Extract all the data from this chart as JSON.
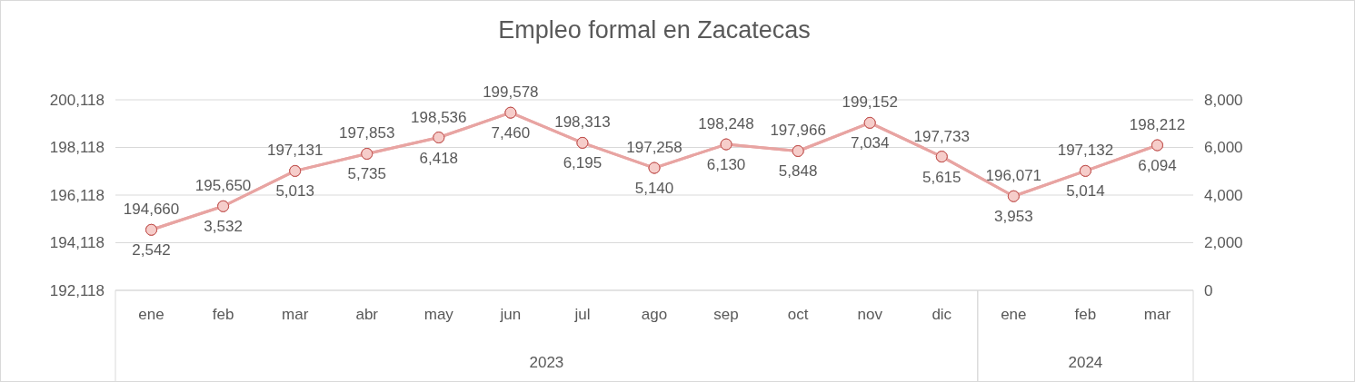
{
  "chart_data": {
    "type": "line",
    "title": "Empleo formal en Zacatecas",
    "categories": [
      "ene",
      "feb",
      "mar",
      "abr",
      "may",
      "jun",
      "jul",
      "ago",
      "sep",
      "oct",
      "nov",
      "dic",
      "ene",
      "feb",
      "mar"
    ],
    "series": [
      {
        "color": "#e8a4a2",
        "values": [
          194660,
          195650,
          197131,
          197853,
          198536,
          199578,
          198313,
          197258,
          198248,
          197966,
          199152,
          197733,
          196071,
          197132,
          198212
        ],
        "value_labels": [
          "194,660",
          "195,650",
          "197,131",
          "197,853",
          "198,536",
          "199,578",
          "198,313",
          "197,258",
          "198,248",
          "197,966",
          "199,152",
          "197,733",
          "196,071",
          "197,132",
          "198,212"
        ]
      },
      {
        "color": "#e8a4a2",
        "axis": "y2",
        "values": [
          2542,
          3532,
          5013,
          5735,
          6418,
          7460,
          6195,
          5140,
          6130,
          5848,
          7034,
          5615,
          3953,
          5014,
          6094
        ],
        "value_labels": [
          "2,542",
          "3,532",
          "5,013",
          "5,735",
          "6,418",
          "7,460",
          "6,195",
          "5,140",
          "6,130",
          "5,848",
          "7,034",
          "5,615",
          "3,953",
          "5,014",
          "6,094"
        ]
      }
    ],
    "ylim": [
      192118,
      200118
    ],
    "yticks": [
      {
        "value": 192118,
        "label": "192,118"
      },
      {
        "value": 194118,
        "label": "194,118"
      },
      {
        "value": 196118,
        "label": "196,118"
      },
      {
        "value": 198118,
        "label": "198,118"
      },
      {
        "value": 200118,
        "label": "200,118"
      }
    ],
    "y2lim": [
      0,
      8000
    ],
    "y2ticks": [
      0,
      {
        "value": 2000,
        "label": "2,000"
      },
      {
        "value": 4000,
        "label": "4,000"
      },
      {
        "value": 6000,
        "label": "6,000"
      },
      {
        "value": 8000,
        "label": "8,000"
      }
    ],
    "grid": "y",
    "marker": "circle",
    "annotations": [
      "2023",
      "2024"
    ]
  }
}
